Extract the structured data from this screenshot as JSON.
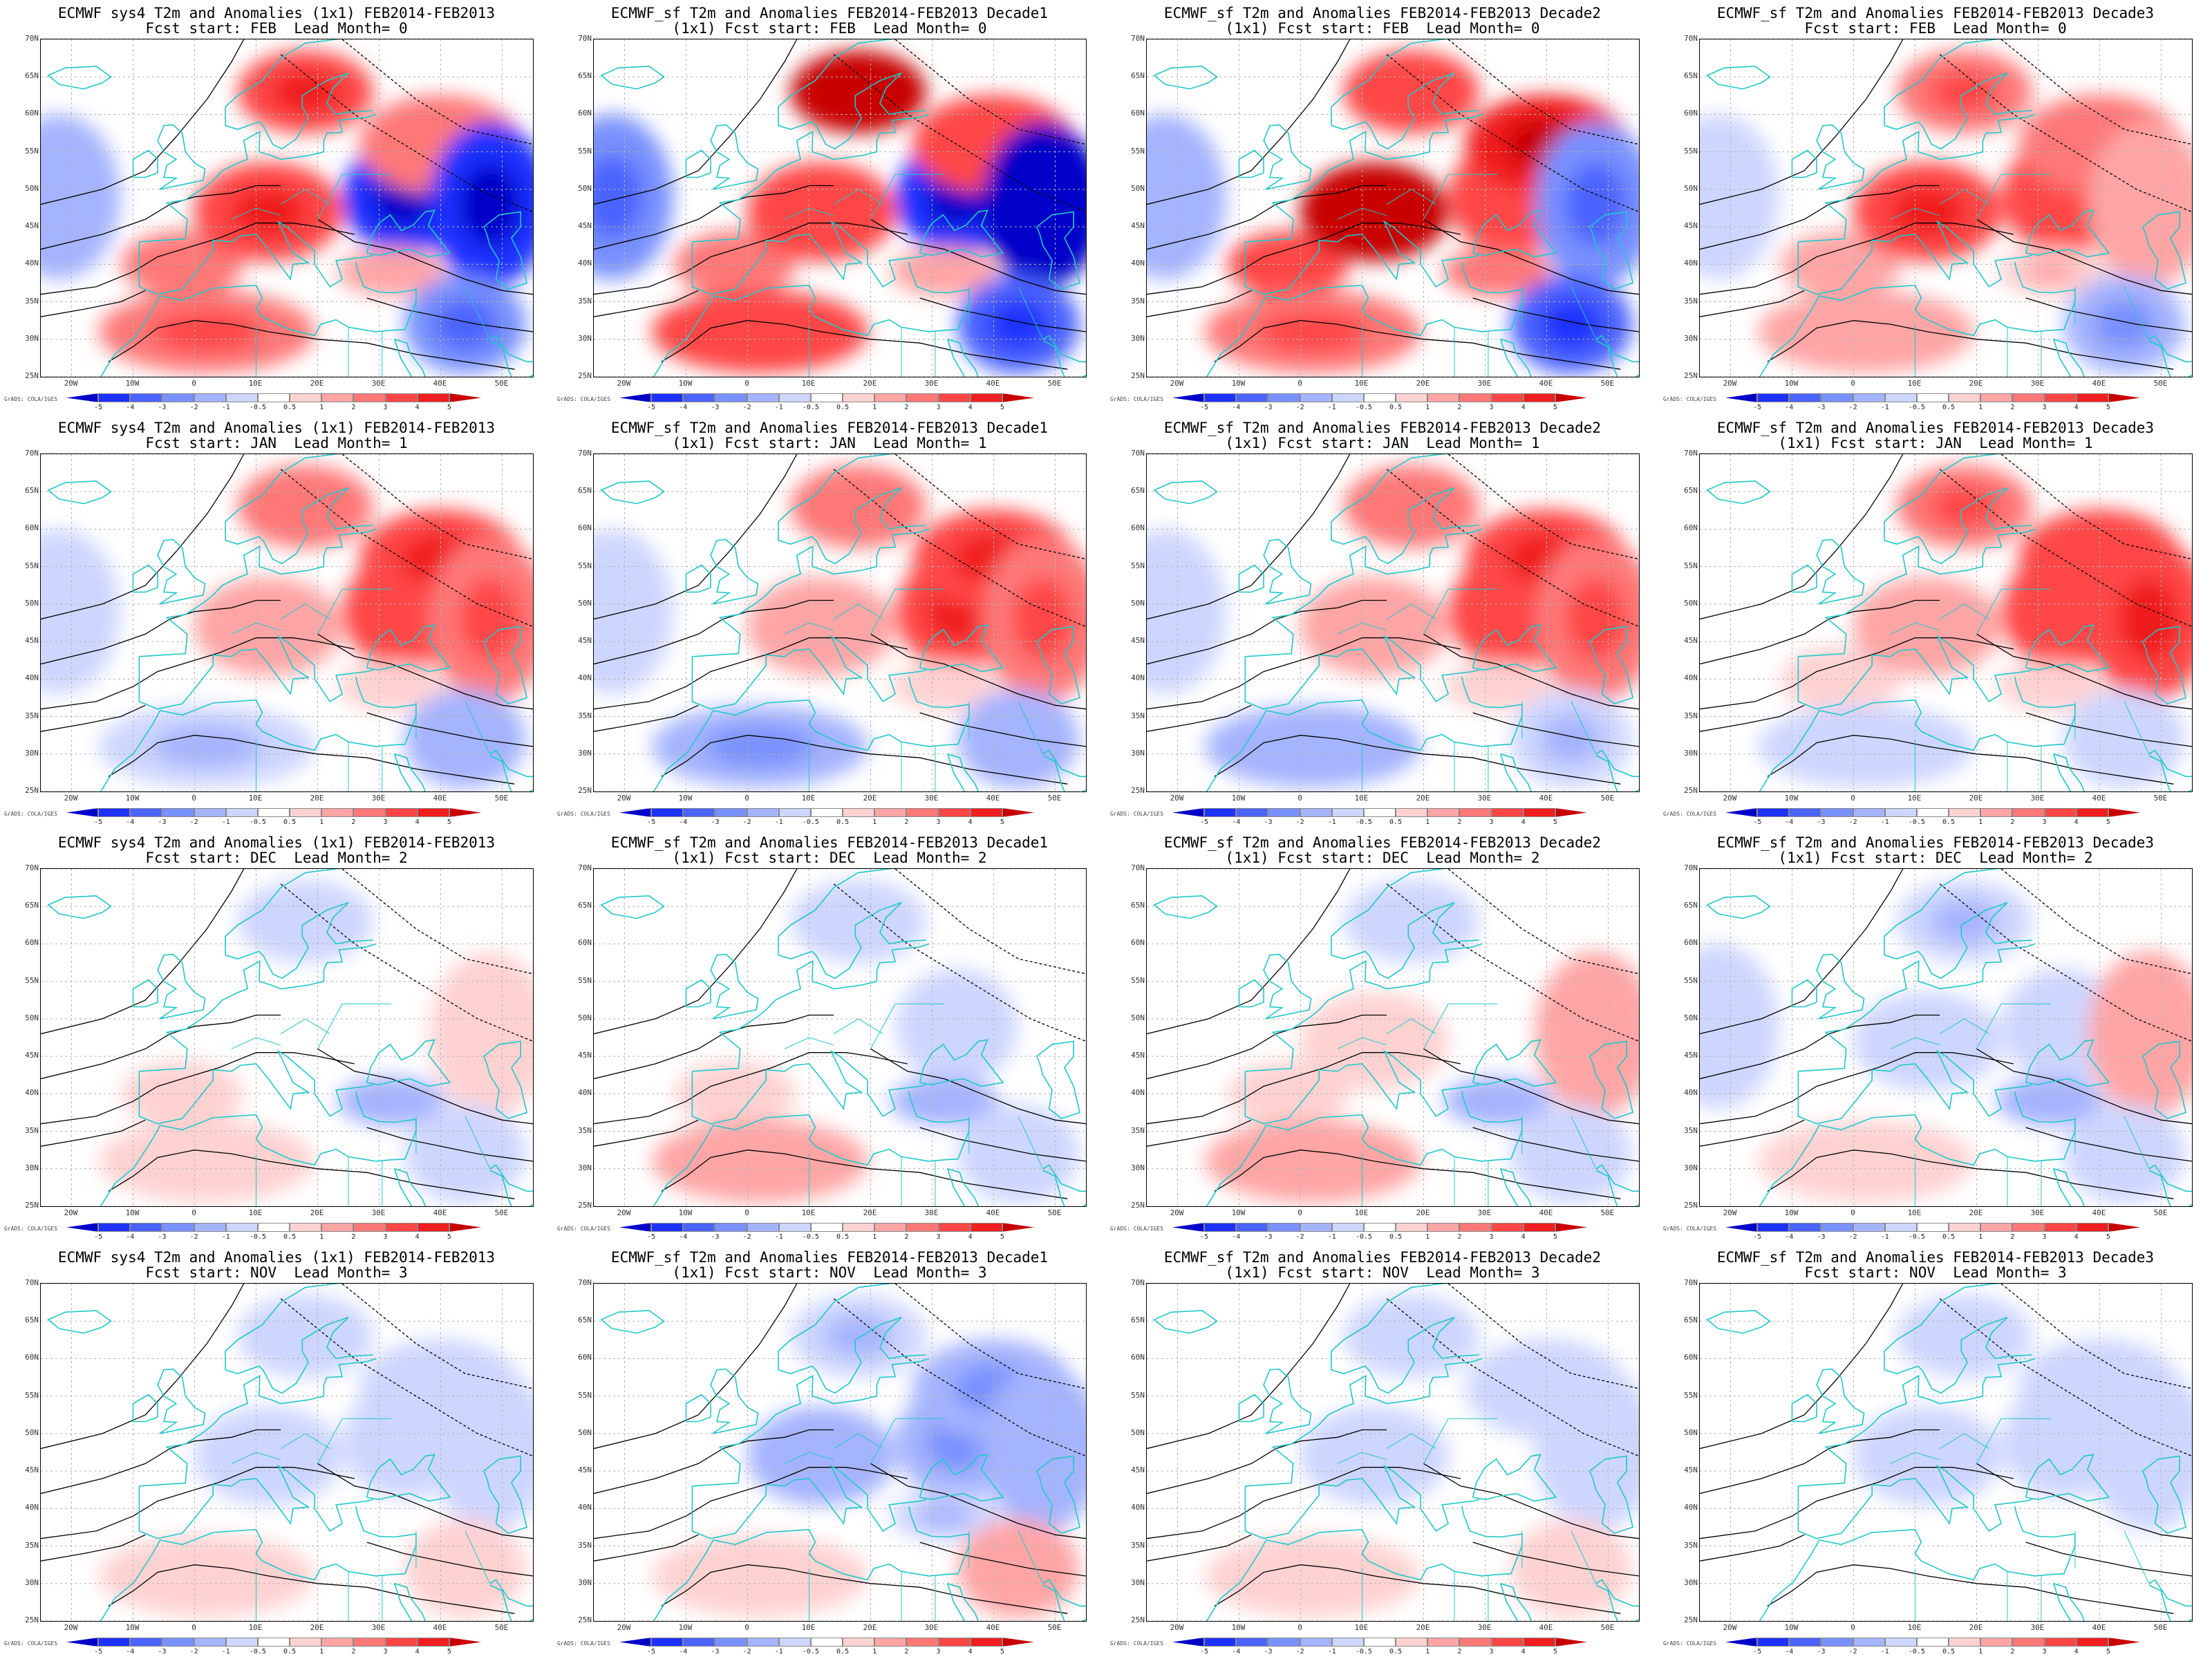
{
  "panels": [
    {
      "line1": "ECMWF sys4 T2m and Anomalies (1x1) FEB2014-FEB2013",
      "line2": "Fcst start: FEB  Lead Month= 0",
      "anom": {
        "scand": 3.5,
        "centEur": 3.5,
        "eastEur": -4.5,
        "iberia": 2.0,
        "nafrica": 2.5,
        "atlW": -1.5,
        "russia": -4.5,
        "mideast": -2.5,
        "westRus": 2.0,
        "turkey": 1.5
      }
    },
    {
      "line1": "ECMWF_sf T2m and Anomalies FEB2014-FEB2013 Decade1",
      "line2": "(1x1) Fcst start: FEB  Lead Month= 0",
      "anom": {
        "scand": 5.0,
        "centEur": 3.0,
        "eastEur": -5.0,
        "iberia": 2.0,
        "nafrica": 3.0,
        "atlW": -2.5,
        "russia": -5.5,
        "mideast": -4.0,
        "westRus": 3.0,
        "turkey": 1.0
      }
    },
    {
      "line1": "ECMWF_sf T2m and Anomalies FEB2014-FEB2013 Decade2",
      "line2": "(1x1) Fcst start: FEB  Lead Month= 0",
      "anom": {
        "scand": 3.0,
        "centEur": 5.0,
        "eastEur": 3.0,
        "iberia": 3.0,
        "nafrica": 2.5,
        "atlW": -1.5,
        "russia": -3.0,
        "mideast": -3.5,
        "westRus": 4.0,
        "turkey": 2.0
      }
    },
    {
      "line1": "ECMWF_sf T2m and Anomalies FEB2014-FEB2013 Decade3",
      "line2": "Fcst start: FEB  Lead Month= 0",
      "anom": {
        "scand": 2.5,
        "centEur": 3.5,
        "eastEur": 3.0,
        "iberia": 1.5,
        "nafrica": 1.0,
        "atlW": -0.8,
        "russia": 1.5,
        "mideast": -2.0,
        "westRus": 2.0,
        "turkey": 0.8
      }
    },
    {
      "line1": "ECMWF sys4 T2m and Anomalies (1x1) FEB2014-FEB2013",
      "line2": "Fcst start: JAN  Lead Month= 1",
      "anom": {
        "scand": 2.0,
        "centEur": 1.5,
        "eastEur": 3.0,
        "iberia": 0,
        "nafrica": -1.0,
        "atlW": -0.7,
        "russia": 2.5,
        "mideast": -1.5,
        "westRus": 3.5,
        "turkey": 0.7
      }
    },
    {
      "line1": "ECMWF_sf T2m and Anomalies FEB2014-FEB2013 Decade1",
      "line2": "(1x1) Fcst start: JAN  Lead Month= 1",
      "anom": {
        "scand": 2.0,
        "centEur": 1.5,
        "eastEur": 3.5,
        "iberia": 0,
        "nafrica": -2.0,
        "atlW": -0.7,
        "russia": 2.5,
        "mideast": -1.5,
        "westRus": 3.5,
        "turkey": 0.7
      }
    },
    {
      "line1": "ECMWF_sf T2m and Anomalies FEB2014-FEB2013 Decade2",
      "line2": "(1x1) Fcst start: JAN  Lead Month= 1",
      "anom": {
        "scand": 2.0,
        "centEur": 1.5,
        "eastEur": 3.0,
        "iberia": 0,
        "nafrica": -1.5,
        "atlW": -0.7,
        "russia": 2.5,
        "mideast": -1.0,
        "westRus": 3.5,
        "turkey": 0.7
      }
    },
    {
      "line1": "ECMWF_sf T2m and Anomalies FEB2014-FEB2013 Decade3",
      "line2": "(1x1) Fcst start: JAN  Lead Month= 1",
      "anom": {
        "scand": 2.5,
        "centEur": 1.5,
        "eastEur": 3.0,
        "iberia": 0.7,
        "nafrica": -0.8,
        "atlW": -0.5,
        "russia": 3.5,
        "mideast": -0.8,
        "westRus": 3.0,
        "turkey": 0.7
      }
    },
    {
      "line1": "ECMWF sys4 T2m and Anomalies (1x1) FEB2014-FEB2013",
      "line2": "Fcst start: DEC  Lead Month= 2",
      "anom": {
        "scand": -0.7,
        "centEur": 0,
        "eastEur": 0,
        "iberia": 0.7,
        "nafrica": 0.7,
        "atlW": 0,
        "russia": 0.7,
        "mideast": -0.7,
        "westRus": 0,
        "turkey": -1.5
      }
    },
    {
      "line1": "ECMWF_sf T2m and Anomalies FEB2014-FEB2013 Decade1",
      "line2": "(1x1) Fcst start: DEC  Lead Month= 2",
      "anom": {
        "scand": -0.7,
        "centEur": 0,
        "eastEur": -0.7,
        "iberia": 0.7,
        "nafrica": 1.0,
        "atlW": 0,
        "russia": 0,
        "mideast": -0.7,
        "westRus": 0,
        "turkey": -1.5
      }
    },
    {
      "line1": "ECMWF_sf T2m and Anomalies FEB2014-FEB2013 Decade2",
      "line2": "(1x1) Fcst start: DEC  Lead Month= 2",
      "anom": {
        "scand": -0.7,
        "centEur": 0.7,
        "eastEur": 0,
        "iberia": 0.7,
        "nafrica": 1.0,
        "atlW": 0,
        "russia": 1.5,
        "mideast": -0.7,
        "westRus": 0,
        "turkey": -1.5
      }
    },
    {
      "line1": "ECMWF_sf T2m and Anomalies FEB2014-FEB2013 Decade3",
      "line2": "(1x1) Fcst start: DEC  Lead Month= 2",
      "anom": {
        "scand": -1.0,
        "centEur": -0.7,
        "eastEur": -0.7,
        "iberia": 0,
        "nafrica": 0.7,
        "atlW": -0.7,
        "russia": 1.5,
        "mideast": -0.7,
        "westRus": 0,
        "turkey": -1.5
      }
    },
    {
      "line1": "ECMWF sys4 T2m and Anomalies (1x1) FEB2014-FEB2013",
      "line2": "Fcst start: NOV  Lead Month= 3",
      "anom": {
        "scand": -0.7,
        "centEur": -0.7,
        "eastEur": -0.7,
        "iberia": 0,
        "nafrica": 0.7,
        "atlW": 0,
        "russia": -0.7,
        "mideast": 0.7,
        "westRus": -0.7,
        "turkey": 0
      }
    },
    {
      "line1": "ECMWF_sf T2m and Anomalies FEB2014-FEB2013 Decade1",
      "line2": "(1x1) Fcst start: NOV  Lead Month= 3",
      "anom": {
        "scand": -1.0,
        "centEur": -1.5,
        "eastEur": -2.0,
        "iberia": 0,
        "nafrica": 0.7,
        "atlW": 0,
        "russia": -1.5,
        "mideast": 1.0,
        "westRus": -2.0,
        "turkey": -1.0
      }
    },
    {
      "line1": "ECMWF_sf T2m and Anomalies FEB2014-FEB2013 Decade2",
      "line2": "(1x1) Fcst start: NOV  Lead Month= 3",
      "anom": {
        "scand": -0.7,
        "centEur": -0.7,
        "eastEur": 0,
        "iberia": 0,
        "nafrica": 0.7,
        "atlW": 0,
        "russia": -0.7,
        "mideast": 0.7,
        "westRus": -0.7,
        "turkey": 0
      }
    },
    {
      "line1": "ECMWF_sf T2m and Anomalies FEB2014-FEB2013 Decade3",
      "line2": "Fcst start: NOV  Lead Month= 3",
      "anom": {
        "scand": -0.7,
        "centEur": -0.7,
        "eastEur": -0.7,
        "iberia": 0,
        "nafrica": 0,
        "atlW": 0,
        "russia": -0.7,
        "mideast": 0,
        "westRus": -0.7,
        "turkey": 0
      }
    }
  ],
  "lat_labels": [
    "70N",
    "65N",
    "60N",
    "55N",
    "50N",
    "45N",
    "40N",
    "35N",
    "30N",
    "25N"
  ],
  "lon_labels": [
    "20W",
    "10W",
    "0",
    "10E",
    "20E",
    "30E",
    "40E",
    "50E"
  ],
  "colorbar": {
    "ticks": [
      "-5",
      "-4",
      "-3",
      "-2",
      "-1",
      "-0.5",
      "0.5",
      "1",
      "2",
      "3",
      "4",
      "5"
    ],
    "colors": [
      "#0000c8",
      "#1e32ff",
      "#4b64ff",
      "#7891ff",
      "#a5b4ff",
      "#cdd6ff",
      "#ffffff",
      "#ffd2d2",
      "#ffa5a5",
      "#ff7878",
      "#ff4646",
      "#f01e1e",
      "#c80000"
    ]
  },
  "credit": "GrADS: COLA/IGES",
  "colors": {
    "coast": "#20c8c8",
    "contour": "#000000",
    "grid": "#b4b4b4"
  }
}
